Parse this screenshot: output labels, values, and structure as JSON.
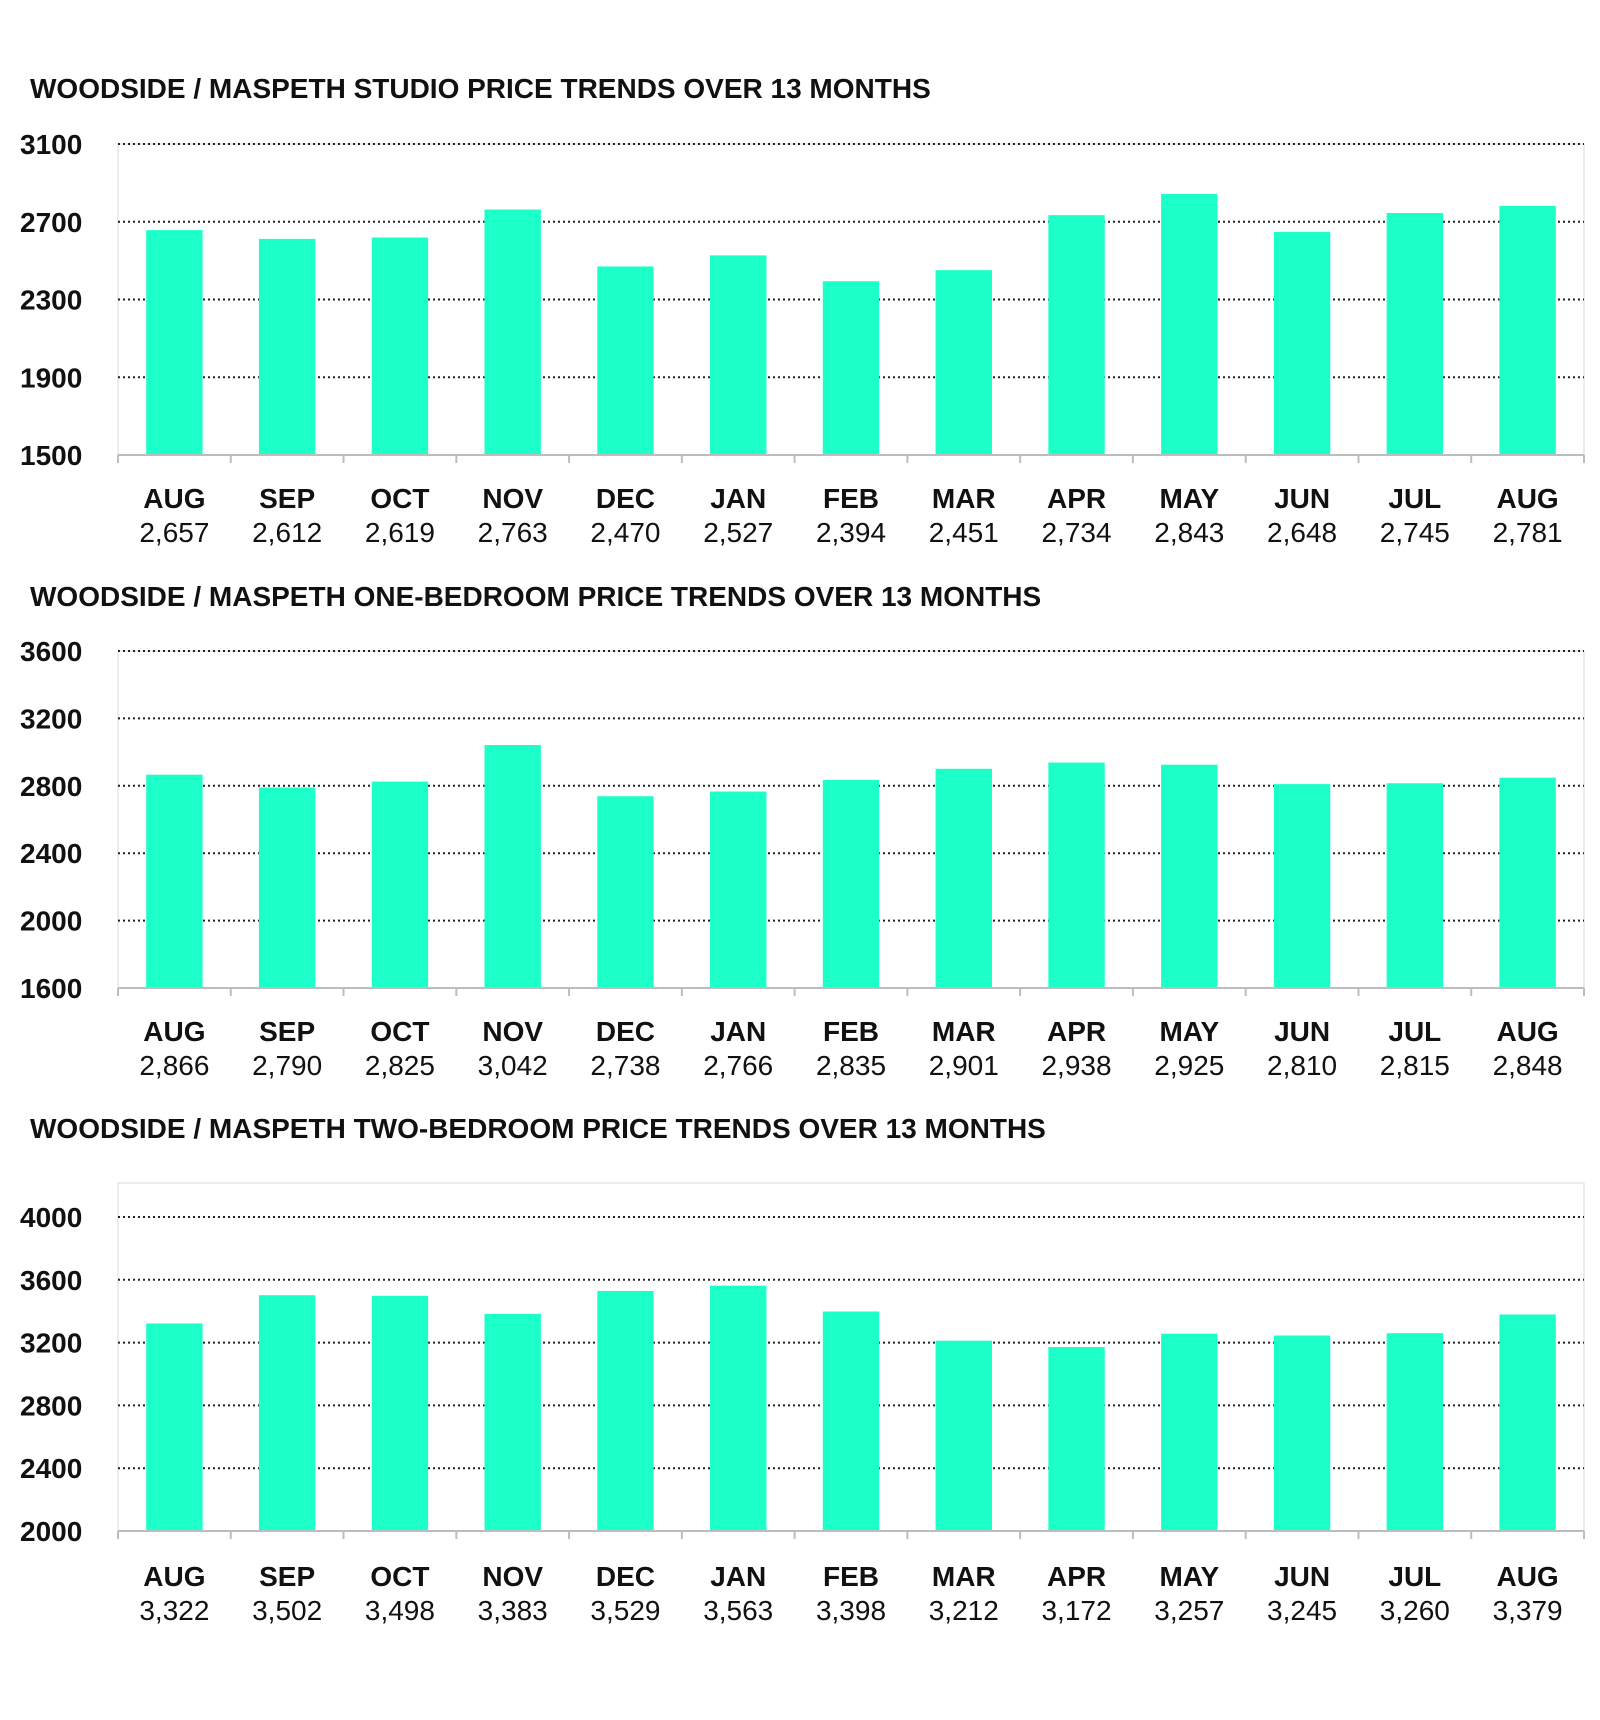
{
  "colors": {
    "bar": "#1cffc8",
    "grid": "#222222",
    "text": "#111111"
  },
  "chart_data": [
    {
      "type": "bar",
      "title": "WOODSIDE / MASPETH STUDIO PRICE TRENDS OVER 13 MONTHS",
      "categories": [
        "AUG",
        "SEP",
        "OCT",
        "NOV",
        "DEC",
        "JAN",
        "FEB",
        "MAR",
        "APR",
        "MAY",
        "JUN",
        "JUL",
        "AUG"
      ],
      "values": [
        2657,
        2612,
        2619,
        2763,
        2470,
        2527,
        2394,
        2451,
        2734,
        2843,
        2648,
        2745,
        2781
      ],
      "value_labels": [
        "2,657",
        "2,612",
        "2,619",
        "2,763",
        "2,470",
        "2,527",
        "2,394",
        "2,451",
        "2,734",
        "2,843",
        "2,648",
        "2,745",
        "2,781"
      ],
      "yticks": [
        "1500",
        "1900",
        "2300",
        "2700",
        "3100"
      ],
      "ylim": [
        1500,
        3100
      ],
      "grid": true
    },
    {
      "type": "bar",
      "title": "WOODSIDE / MASPETH ONE-BEDROOM PRICE TRENDS OVER 13 MONTHS",
      "categories": [
        "AUG",
        "SEP",
        "OCT",
        "NOV",
        "DEC",
        "JAN",
        "FEB",
        "MAR",
        "APR",
        "MAY",
        "JUN",
        "JUL",
        "AUG"
      ],
      "values": [
        2866,
        2790,
        2825,
        3042,
        2738,
        2766,
        2835,
        2901,
        2938,
        2925,
        2810,
        2815,
        2848
      ],
      "value_labels": [
        "2,866",
        "2,790",
        "2,825",
        "3,042",
        "2,738",
        "2,766",
        "2,835",
        "2,901",
        "2,938",
        "2,925",
        "2,810",
        "2,815",
        "2,848"
      ],
      "yticks": [
        "1600",
        "2000",
        "2400",
        "2800",
        "3200",
        "3600"
      ],
      "ylim": [
        1600,
        3600
      ],
      "grid": true
    },
    {
      "type": "bar",
      "title": "WOODSIDE / MASPETH TWO-BEDROOM PRICE TRENDS OVER 13 MONTHS",
      "categories": [
        "AUG",
        "SEP",
        "OCT",
        "NOV",
        "DEC",
        "JAN",
        "FEB",
        "MAR",
        "APR",
        "MAY",
        "JUN",
        "JUL",
        "AUG"
      ],
      "values": [
        3322,
        3502,
        3498,
        3383,
        3529,
        3563,
        3398,
        3212,
        3172,
        3257,
        3245,
        3260,
        3379
      ],
      "value_labels": [
        "3,322",
        "3,502",
        "3,498",
        "3,383",
        "3,529",
        "3,563",
        "3,398",
        "3,212",
        "3,172",
        "3,257",
        "3,245",
        "3,260",
        "3,379"
      ],
      "yticks": [
        "2000",
        "2400",
        "2800",
        "3200",
        "3600",
        "4000"
      ],
      "ylim": [
        2000,
        4000
      ],
      "grid": true
    }
  ]
}
